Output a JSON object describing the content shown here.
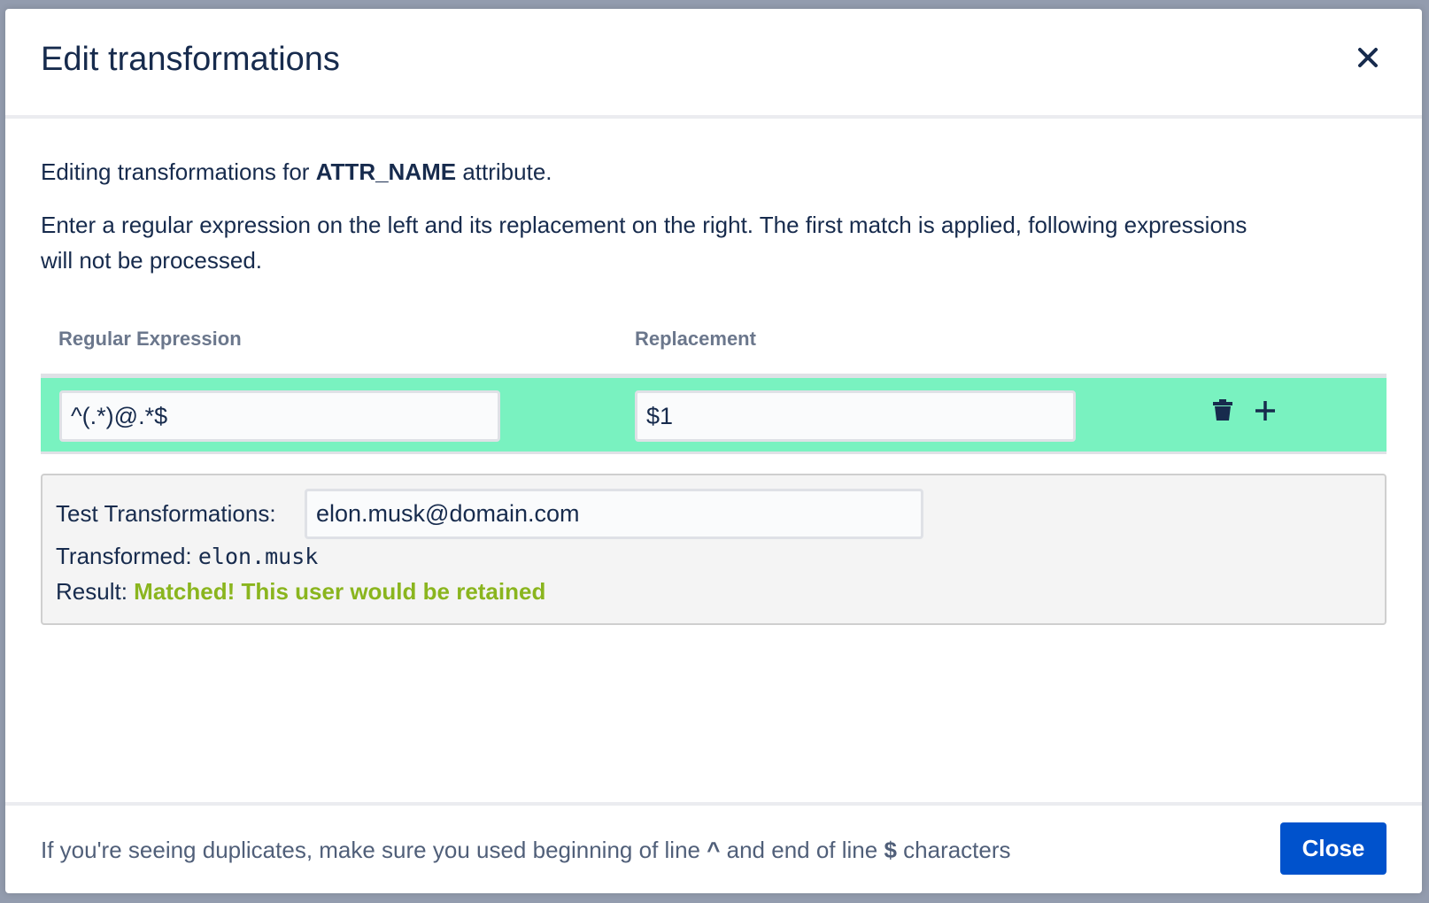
{
  "dialog": {
    "title": "Edit transformations",
    "intro_prefix": "Editing transformations for ",
    "attribute_name": "ATTR_NAME",
    "intro_suffix": " attribute.",
    "instructions": "Enter a regular expression on the left and its replacement on the right. The first match is applied, following expressions will not be processed."
  },
  "table": {
    "headers": [
      "Regular Expression",
      "Replacement"
    ],
    "rows": [
      {
        "regex": "^(.*)@.*$",
        "replacement": "$1",
        "highlight_color": "#79f2c0"
      }
    ]
  },
  "test": {
    "label": "Test Transformations:",
    "value": "elon.musk@domain.com",
    "transformed_label": "Transformed: ",
    "transformed_value": "elon.musk",
    "result_label": "Result: ",
    "result_value": "Matched! This user would be retained",
    "result_color": "#8ab51e"
  },
  "footer": {
    "hint_part1": "If you're seeing duplicates, make sure you used beginning of line ",
    "hint_caret": "^",
    "hint_part2": " and end of line ",
    "hint_dollar": "$",
    "hint_part3": " characters",
    "close_label": "Close",
    "close_color": "#0052cc"
  }
}
